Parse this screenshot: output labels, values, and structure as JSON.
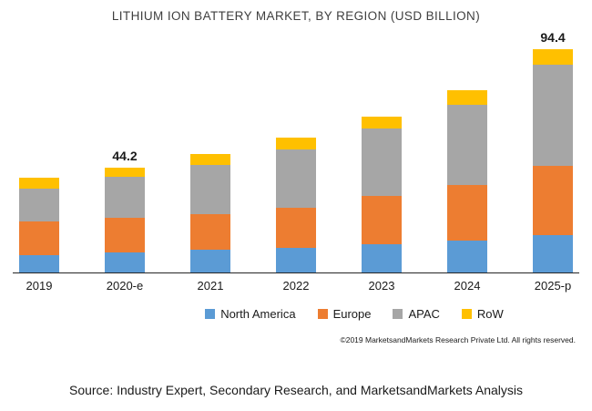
{
  "title": "LITHIUM ION BATTERY MARKET, BY REGION (USD BILLION)",
  "chart_data": {
    "type": "bar",
    "stacked": true,
    "title": "LITHIUM ION BATTERY MARKET, BY REGION (USD BILLION)",
    "xlabel": "",
    "ylabel": "",
    "ylim": [
      0,
      100
    ],
    "grid": false,
    "legend_position": "bottom",
    "categories": [
      "2019",
      "2020-e",
      "2021",
      "2022",
      "2023",
      "2024",
      "2025-p"
    ],
    "series": [
      {
        "name": "North America",
        "color": "#5b9bd5",
        "values": [
          7.5,
          8.5,
          9.5,
          10.5,
          12.0,
          13.5,
          16.0
        ]
      },
      {
        "name": "Europe",
        "color": "#ed7d31",
        "values": [
          14.0,
          14.5,
          15.0,
          17.0,
          20.5,
          23.5,
          29.0
        ]
      },
      {
        "name": "APAC",
        "color": "#a6a6a6",
        "values": [
          14.0,
          17.5,
          21.0,
          24.5,
          28.5,
          34.0,
          42.7
        ]
      },
      {
        "name": "RoW",
        "color": "#ffc000",
        "values": [
          4.5,
          3.7,
          4.5,
          5.0,
          5.0,
          6.0,
          6.7
        ]
      }
    ],
    "totals_labels": [
      "",
      "44.2",
      "",
      "",
      "",
      "",
      "94.4"
    ]
  },
  "footer": {
    "copyright": "©2019 MarketsandMarkets Research Private Ltd. All rights reserved.",
    "source": "Source: Industry Expert, Secondary Research, and MarketsandMarkets Analysis"
  }
}
